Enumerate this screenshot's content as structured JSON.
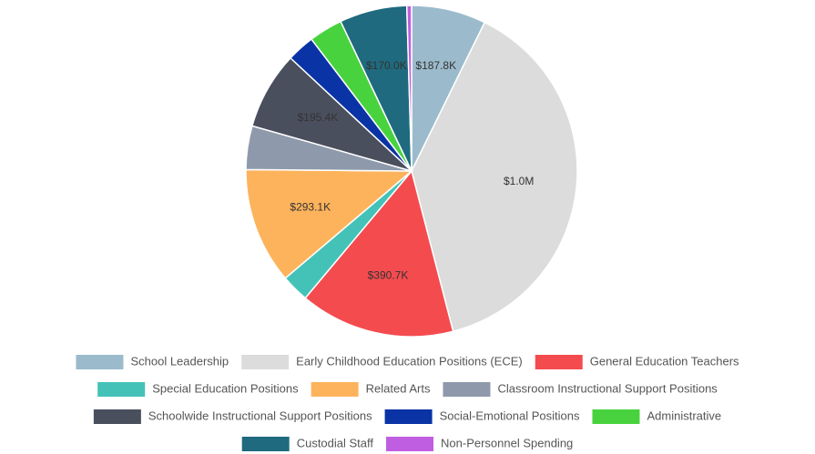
{
  "chart_data": {
    "type": "pie",
    "categories": [
      "School Leadership",
      "Early Childhood Education Positions (ECE)",
      "General Education Teachers",
      "Special Education Positions",
      "Related Arts",
      "Classroom Instructional Support Positions",
      "Schoolwide Instructional Support Positions",
      "Social-Emotional Positions",
      "Administrative",
      "Custodial Staff",
      "Non-Personnel Spending"
    ],
    "values": [
      187800,
      1000000,
      390700,
      70000,
      293100,
      110000,
      195400,
      70000,
      85000,
      170000,
      12000
    ],
    "value_labels": [
      "$187.8K",
      "$1.0M",
      "$390.7K",
      null,
      "$293.1K",
      null,
      "$195.4K",
      null,
      null,
      "$170.0K",
      null
    ],
    "colors": [
      "#9bbbcc",
      "#dcdcdc",
      "#f44b4f",
      "#44c2b8",
      "#fdb35c",
      "#8e9aab",
      "#4a4f5e",
      "#0a33a5",
      "#48d33e",
      "#1f6a7e",
      "#c05ee2"
    ],
    "legend": true
  }
}
